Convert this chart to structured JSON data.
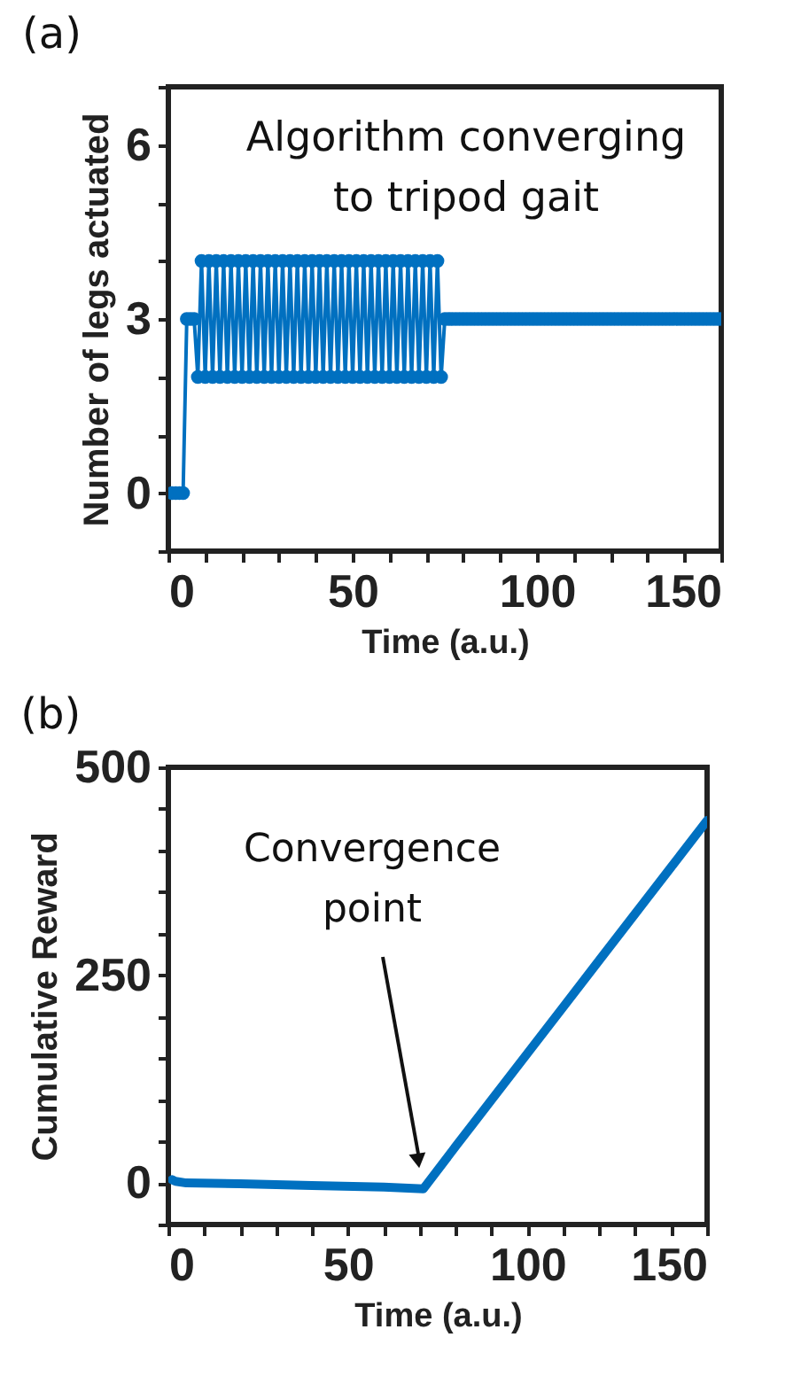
{
  "chart_data": [
    {
      "type": "line",
      "title": "(a)",
      "xlabel": "Time (a.u.)",
      "ylabel": "Number of legs actuated",
      "annotations": [
        "Algorithm converging\nto tripod gait"
      ],
      "x": [
        1,
        2,
        3,
        4,
        5,
        6,
        7,
        8,
        9,
        10,
        11,
        12,
        13,
        14,
        15,
        16,
        17,
        18,
        19,
        20,
        21,
        22,
        23,
        24,
        25,
        26,
        27,
        28,
        29,
        30,
        31,
        32,
        33,
        34,
        35,
        36,
        37,
        38,
        39,
        40,
        41,
        42,
        43,
        44,
        45,
        46,
        47,
        48,
        49,
        50,
        51,
        52,
        53,
        54,
        55,
        56,
        57,
        58,
        59,
        60,
        61,
        62,
        63,
        64,
        65,
        66,
        67,
        68,
        69,
        70,
        71,
        72,
        73,
        74,
        75,
        76,
        77,
        78,
        79,
        80,
        81,
        82,
        83,
        84,
        85,
        86,
        87,
        88,
        89,
        90,
        91,
        92,
        93,
        94,
        95,
        96,
        97,
        98,
        99,
        100,
        101,
        102,
        103,
        104,
        105,
        106,
        107,
        108,
        109,
        110,
        111,
        112,
        113,
        114,
        115,
        116,
        117,
        118,
        119,
        120,
        121,
        122,
        123,
        124,
        125,
        126,
        127,
        128,
        129,
        130,
        131,
        132,
        133,
        134,
        135,
        136,
        137,
        138,
        139,
        140,
        141,
        142,
        143,
        144,
        145,
        146,
        147,
        148,
        149,
        150
      ],
      "series": [
        {
          "color": "#0070c0",
          "values": [
            0,
            0,
            0,
            0,
            3,
            3,
            3,
            2,
            4,
            2,
            4,
            2,
            4,
            2,
            4,
            2,
            4,
            2,
            4,
            2,
            4,
            2,
            4,
            2,
            4,
            2,
            4,
            2,
            4,
            2,
            4,
            2,
            4,
            2,
            4,
            2,
            4,
            2,
            4,
            2,
            4,
            2,
            4,
            2,
            4,
            2,
            4,
            2,
            4,
            2,
            4,
            2,
            4,
            2,
            4,
            2,
            4,
            2,
            4,
            2,
            4,
            2,
            4,
            2,
            4,
            2,
            4,
            2,
            4,
            2,
            4,
            2,
            4,
            2,
            3,
            3,
            3,
            3,
            3,
            3,
            3,
            3,
            3,
            3,
            3,
            3,
            3,
            3,
            3,
            3,
            3,
            3,
            3,
            3,
            3,
            3,
            3,
            3,
            3,
            3,
            3,
            3,
            3,
            3,
            3,
            3,
            3,
            3,
            3,
            3,
            3,
            3,
            3,
            3,
            3,
            3,
            3,
            3,
            3,
            3,
            3,
            3,
            3,
            3,
            3,
            3,
            3,
            3,
            3,
            3,
            3,
            3,
            3,
            3,
            3,
            3,
            3,
            3,
            3,
            3,
            3,
            3,
            3,
            3,
            3,
            3,
            3,
            3,
            3,
            3
          ]
        }
      ],
      "xlim": [
        0,
        150
      ],
      "ylim": [
        -1,
        7
      ],
      "xticks": [
        0,
        {
          "value": 10,
          "label": null
        },
        {
          "value": 20,
          "label": null
        },
        {
          "value": 30,
          "label": null
        },
        {
          "value": 40,
          "label": null
        },
        50,
        {
          "value": 60,
          "label": null
        },
        {
          "value": 70,
          "label": null
        },
        {
          "value": 80,
          "label": null
        },
        {
          "value": 90,
          "label": null
        },
        100,
        {
          "value": 110,
          "label": null
        },
        {
          "value": 120,
          "label": null
        },
        {
          "value": 130,
          "label": null
        },
        {
          "value": 140,
          "label": null
        },
        150
      ],
      "yticks": [
        {
          "value": -1,
          "label": null
        },
        0,
        {
          "value": 1,
          "label": null
        },
        {
          "value": 2,
          "label": null
        },
        3,
        {
          "value": 4,
          "label": null
        },
        {
          "value": 5,
          "label": null
        },
        6,
        {
          "value": 7,
          "label": null
        }
      ],
      "marker": "circle",
      "line_style": "solid"
    },
    {
      "type": "line",
      "title": "(b)",
      "xlabel": "Time (a.u.)",
      "ylabel": "Cumulative Reward",
      "annotations": [
        "Convergence\npoint"
      ],
      "x": [
        1,
        2,
        5,
        20,
        40,
        60,
        71,
        80,
        90,
        100,
        110,
        120,
        130,
        140,
        150
      ],
      "series": [
        {
          "color": "#0070c0",
          "values": [
            4,
            2,
            0,
            -1,
            -3,
            -5,
            -7,
            44,
            100,
            156,
            212,
            268,
            324,
            380,
            436
          ]
        }
      ],
      "xlim": [
        0,
        150
      ],
      "ylim": [
        -50,
        500
      ],
      "xticks": [
        0,
        {
          "value": 10,
          "label": null
        },
        {
          "value": 20,
          "label": null
        },
        {
          "value": 30,
          "label": null
        },
        {
          "value": 40,
          "label": null
        },
        50,
        {
          "value": 60,
          "label": null
        },
        {
          "value": 70,
          "label": null
        },
        {
          "value": 80,
          "label": null
        },
        {
          "value": 90,
          "label": null
        },
        100,
        {
          "value": 110,
          "label": null
        },
        {
          "value": 120,
          "label": null
        },
        {
          "value": 130,
          "label": null
        },
        {
          "value": 140,
          "label": null
        },
        150
      ],
      "yticks": [
        {
          "value": -50,
          "label": null
        },
        0,
        {
          "value": 50,
          "label": null
        },
        {
          "value": 100,
          "label": null
        },
        {
          "value": 150,
          "label": null
        },
        {
          "value": 200,
          "label": null
        },
        250,
        {
          "value": 300,
          "label": null
        },
        {
          "value": 350,
          "label": null
        },
        {
          "value": 400,
          "label": null
        },
        {
          "value": 450,
          "label": null
        },
        500
      ],
      "marker": "none",
      "line_style": "solid"
    }
  ]
}
